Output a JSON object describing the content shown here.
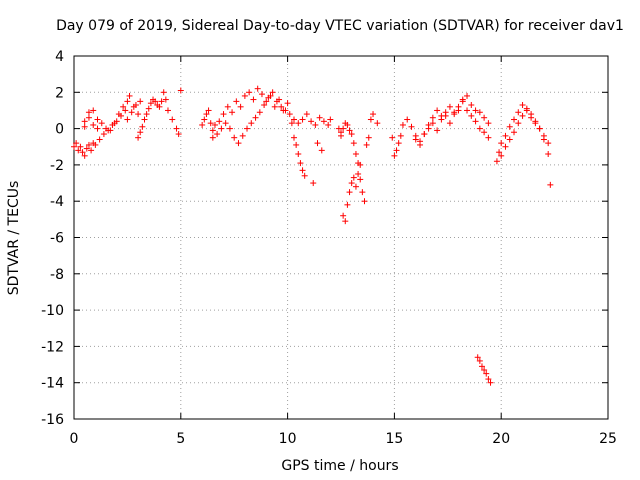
{
  "chart_data": {
    "type": "scatter",
    "title": "Day 079 of 2019, Sidereal Day-to-day VTEC variation (SDTVAR) for receiver dav1",
    "xlabel": "GPS time / hours",
    "ylabel": "SDTVAR / TECUs",
    "xlim": [
      0,
      25
    ],
    "ylim": [
      -16,
      4
    ],
    "xticks": [
      0,
      5,
      10,
      15,
      20,
      25
    ],
    "yticks": [
      4,
      2,
      0,
      -2,
      -4,
      -6,
      -8,
      -10,
      -12,
      -14,
      -16
    ],
    "grid": true,
    "marker": "plus",
    "color": "#ff0000",
    "series": [
      {
        "name": "SDTVAR",
        "x": [
          0.0,
          0.1,
          0.2,
          0.3,
          0.4,
          0.5,
          0.6,
          0.7,
          0.8,
          0.9,
          1.0,
          1.2,
          1.4,
          1.6,
          1.8,
          2.0,
          2.2,
          2.4,
          2.5,
          2.6,
          2.8,
          3.0,
          0.5,
          0.7,
          0.9,
          1.1,
          1.3,
          1.5,
          1.7,
          1.9,
          2.1,
          2.3,
          2.5,
          2.7,
          2.9,
          3.1,
          0.5,
          0.7,
          0.9,
          1.1,
          3.0,
          3.1,
          3.2,
          3.3,
          3.4,
          3.5,
          3.6,
          3.7,
          3.8,
          3.9,
          4.0,
          4.1,
          4.2,
          4.3,
          4.4,
          4.6,
          4.8,
          4.9,
          5.0,
          6.0,
          6.1,
          6.2,
          6.3,
          6.4,
          6.5,
          6.6,
          6.8,
          7.0,
          7.2,
          7.4,
          7.6,
          7.8,
          8.0,
          8.2,
          8.4,
          8.6,
          8.8,
          9.0,
          9.2,
          9.4,
          9.6,
          9.8,
          10.0,
          6.5,
          6.7,
          6.9,
          7.1,
          7.3,
          7.5,
          7.7,
          7.9,
          8.1,
          8.3,
          8.5,
          8.7,
          8.9,
          9.1,
          9.3,
          9.5,
          9.7,
          9.9,
          10.1,
          10.3,
          10.5,
          10.7,
          10.9,
          11.1,
          11.3,
          11.5,
          11.7,
          11.9,
          12.0,
          10.2,
          10.3,
          10.4,
          10.5,
          10.6,
          10.7,
          10.8,
          11.2,
          11.4,
          11.6,
          12.5,
          12.6,
          12.7,
          12.8,
          12.9,
          13.0,
          13.1,
          13.2,
          13.3,
          13.4,
          13.5,
          13.6,
          13.7,
          13.8,
          13.9,
          14.0,
          14.2,
          12.4,
          12.5,
          12.6,
          12.7,
          12.8,
          12.9,
          13.0,
          13.1,
          13.2,
          13.3,
          13.4,
          14.9,
          15.0,
          15.1,
          15.2,
          15.3,
          15.4,
          15.6,
          15.8,
          16.0,
          16.2,
          16.4,
          16.6,
          16.8,
          17.0,
          17.2,
          17.4,
          17.6,
          17.8,
          18.0,
          18.2,
          18.4,
          18.6,
          18.8,
          19.0,
          19.2,
          19.4,
          16.0,
          16.2,
          16.4,
          16.6,
          16.8,
          17.0,
          17.2,
          17.4,
          17.6,
          17.8,
          18.0,
          18.2,
          18.4,
          18.6,
          18.8,
          19.0,
          19.2,
          19.4,
          18.9,
          19.0,
          19.1,
          19.2,
          19.3,
          19.4,
          19.5,
          19.8,
          19.9,
          20.0,
          20.2,
          20.4,
          20.6,
          20.8,
          21.0,
          21.2,
          21.4,
          21.6,
          21.8,
          22.0,
          22.2,
          22.3,
          20.0,
          20.2,
          20.4,
          20.6,
          20.8,
          21.0,
          21.2,
          21.4,
          21.6,
          21.8,
          22.0,
          22.2
        ],
        "y": [
          -1.0,
          -0.8,
          -1.2,
          -1.0,
          -1.3,
          -1.5,
          -1.1,
          -0.9,
          -1.2,
          -0.8,
          -0.9,
          -0.6,
          -0.3,
          -0.1,
          0.2,
          0.4,
          0.7,
          1.0,
          1.5,
          1.8,
          1.2,
          0.8,
          0.1,
          0.6,
          1.0,
          0.5,
          0.3,
          0.0,
          -0.1,
          0.3,
          0.8,
          1.2,
          0.5,
          0.9,
          1.3,
          1.5,
          0.4,
          0.9,
          0.2,
          0.0,
          -0.5,
          -0.2,
          0.1,
          0.5,
          0.8,
          1.1,
          1.4,
          1.6,
          1.5,
          1.3,
          1.2,
          1.5,
          2.0,
          1.6,
          1.0,
          0.5,
          0.0,
          -0.3,
          2.1,
          0.2,
          0.5,
          0.8,
          1.0,
          0.3,
          -0.1,
          0.2,
          0.4,
          0.8,
          1.2,
          0.9,
          1.5,
          1.2,
          1.8,
          2.0,
          1.6,
          2.2,
          1.9,
          1.5,
          1.8,
          1.2,
          1.6,
          1.0,
          1.4,
          -0.5,
          -0.3,
          0.0,
          0.3,
          0.0,
          -0.5,
          -0.8,
          -0.4,
          0.0,
          0.3,
          0.6,
          0.9,
          1.3,
          1.7,
          2.0,
          1.5,
          1.2,
          1.0,
          0.8,
          0.5,
          0.3,
          0.5,
          0.8,
          0.4,
          0.2,
          0.6,
          0.4,
          0.2,
          0.5,
          0.3,
          -0.5,
          -0.9,
          -1.4,
          -1.9,
          -2.3,
          -2.6,
          -3.0,
          -0.8,
          -1.2,
          -0.4,
          -4.8,
          -5.1,
          -4.2,
          -3.5,
          -3.0,
          -2.7,
          -3.2,
          -2.5,
          -2.8,
          -3.5,
          -4.0,
          -0.9,
          -0.5,
          0.5,
          0.8,
          0.3,
          0.0,
          -0.2,
          0.0,
          0.3,
          0.2,
          -0.1,
          -0.3,
          -0.8,
          -1.4,
          -1.9,
          -2.0,
          -0.5,
          -1.5,
          -1.2,
          -0.8,
          -0.4,
          0.2,
          0.5,
          0.1,
          -0.6,
          -0.9,
          -0.3,
          0.2,
          0.6,
          1.0,
          0.7,
          0.9,
          1.2,
          0.8,
          1.0,
          1.5,
          1.8,
          1.3,
          1.0,
          0.9,
          0.6,
          0.3,
          -0.4,
          -0.7,
          -0.3,
          0.0,
          0.3,
          -0.1,
          0.5,
          0.7,
          0.3,
          0.9,
          1.2,
          1.6,
          1.0,
          0.7,
          0.4,
          0.0,
          -0.2,
          -0.5,
          -12.6,
          -12.8,
          -13.1,
          -13.3,
          -13.5,
          -13.8,
          -14.0,
          -1.8,
          -1.3,
          -0.8,
          -0.4,
          0.1,
          0.5,
          0.9,
          1.3,
          1.0,
          0.6,
          0.3,
          0.0,
          -0.4,
          -0.8,
          -3.1,
          -1.5,
          -1.0,
          -0.6,
          -0.2,
          0.3,
          0.7,
          1.1,
          0.8,
          0.4,
          0.0,
          -0.6,
          -1.4
        ]
      }
    ]
  }
}
